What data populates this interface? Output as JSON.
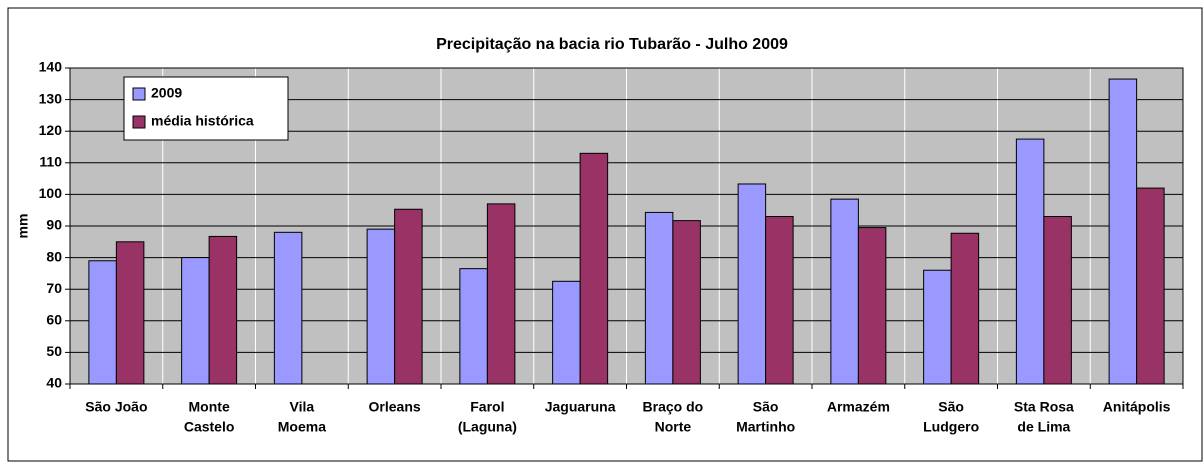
{
  "chart_data": {
    "type": "bar",
    "title": "Precipitação na bacia rio Tubarão - Julho 2009",
    "y_label": "mm",
    "categories": [
      [
        "São João"
      ],
      [
        "Monte",
        "Castelo"
      ],
      [
        "Vila",
        "Moema"
      ],
      [
        "Orleans"
      ],
      [
        "Farol",
        "(Laguna)"
      ],
      [
        "Jaguaruna"
      ],
      [
        "Braço do",
        "Norte"
      ],
      [
        "São",
        "Martinho"
      ],
      [
        "Armazém"
      ],
      [
        "São",
        "Ludgero"
      ],
      [
        "Sta Rosa",
        "de Lima"
      ],
      [
        "Anitápolis"
      ]
    ],
    "series": [
      {
        "name": "2009",
        "color": "#9999ff",
        "values": [
          79,
          80,
          88,
          89,
          76.5,
          72.5,
          94.3,
          103.3,
          98.5,
          76,
          117.5,
          136.5
        ]
      },
      {
        "name": "média histórica",
        "color": "#993366",
        "values": [
          85,
          86.7,
          null,
          95.3,
          97,
          113,
          91.7,
          93,
          89.5,
          87.7,
          93,
          102
        ]
      }
    ],
    "ylim": [
      40,
      140
    ],
    "yticks": [
      40,
      50,
      60,
      70,
      80,
      90,
      100,
      110,
      120,
      130,
      140
    ],
    "grid": true,
    "legend": "top-left"
  }
}
